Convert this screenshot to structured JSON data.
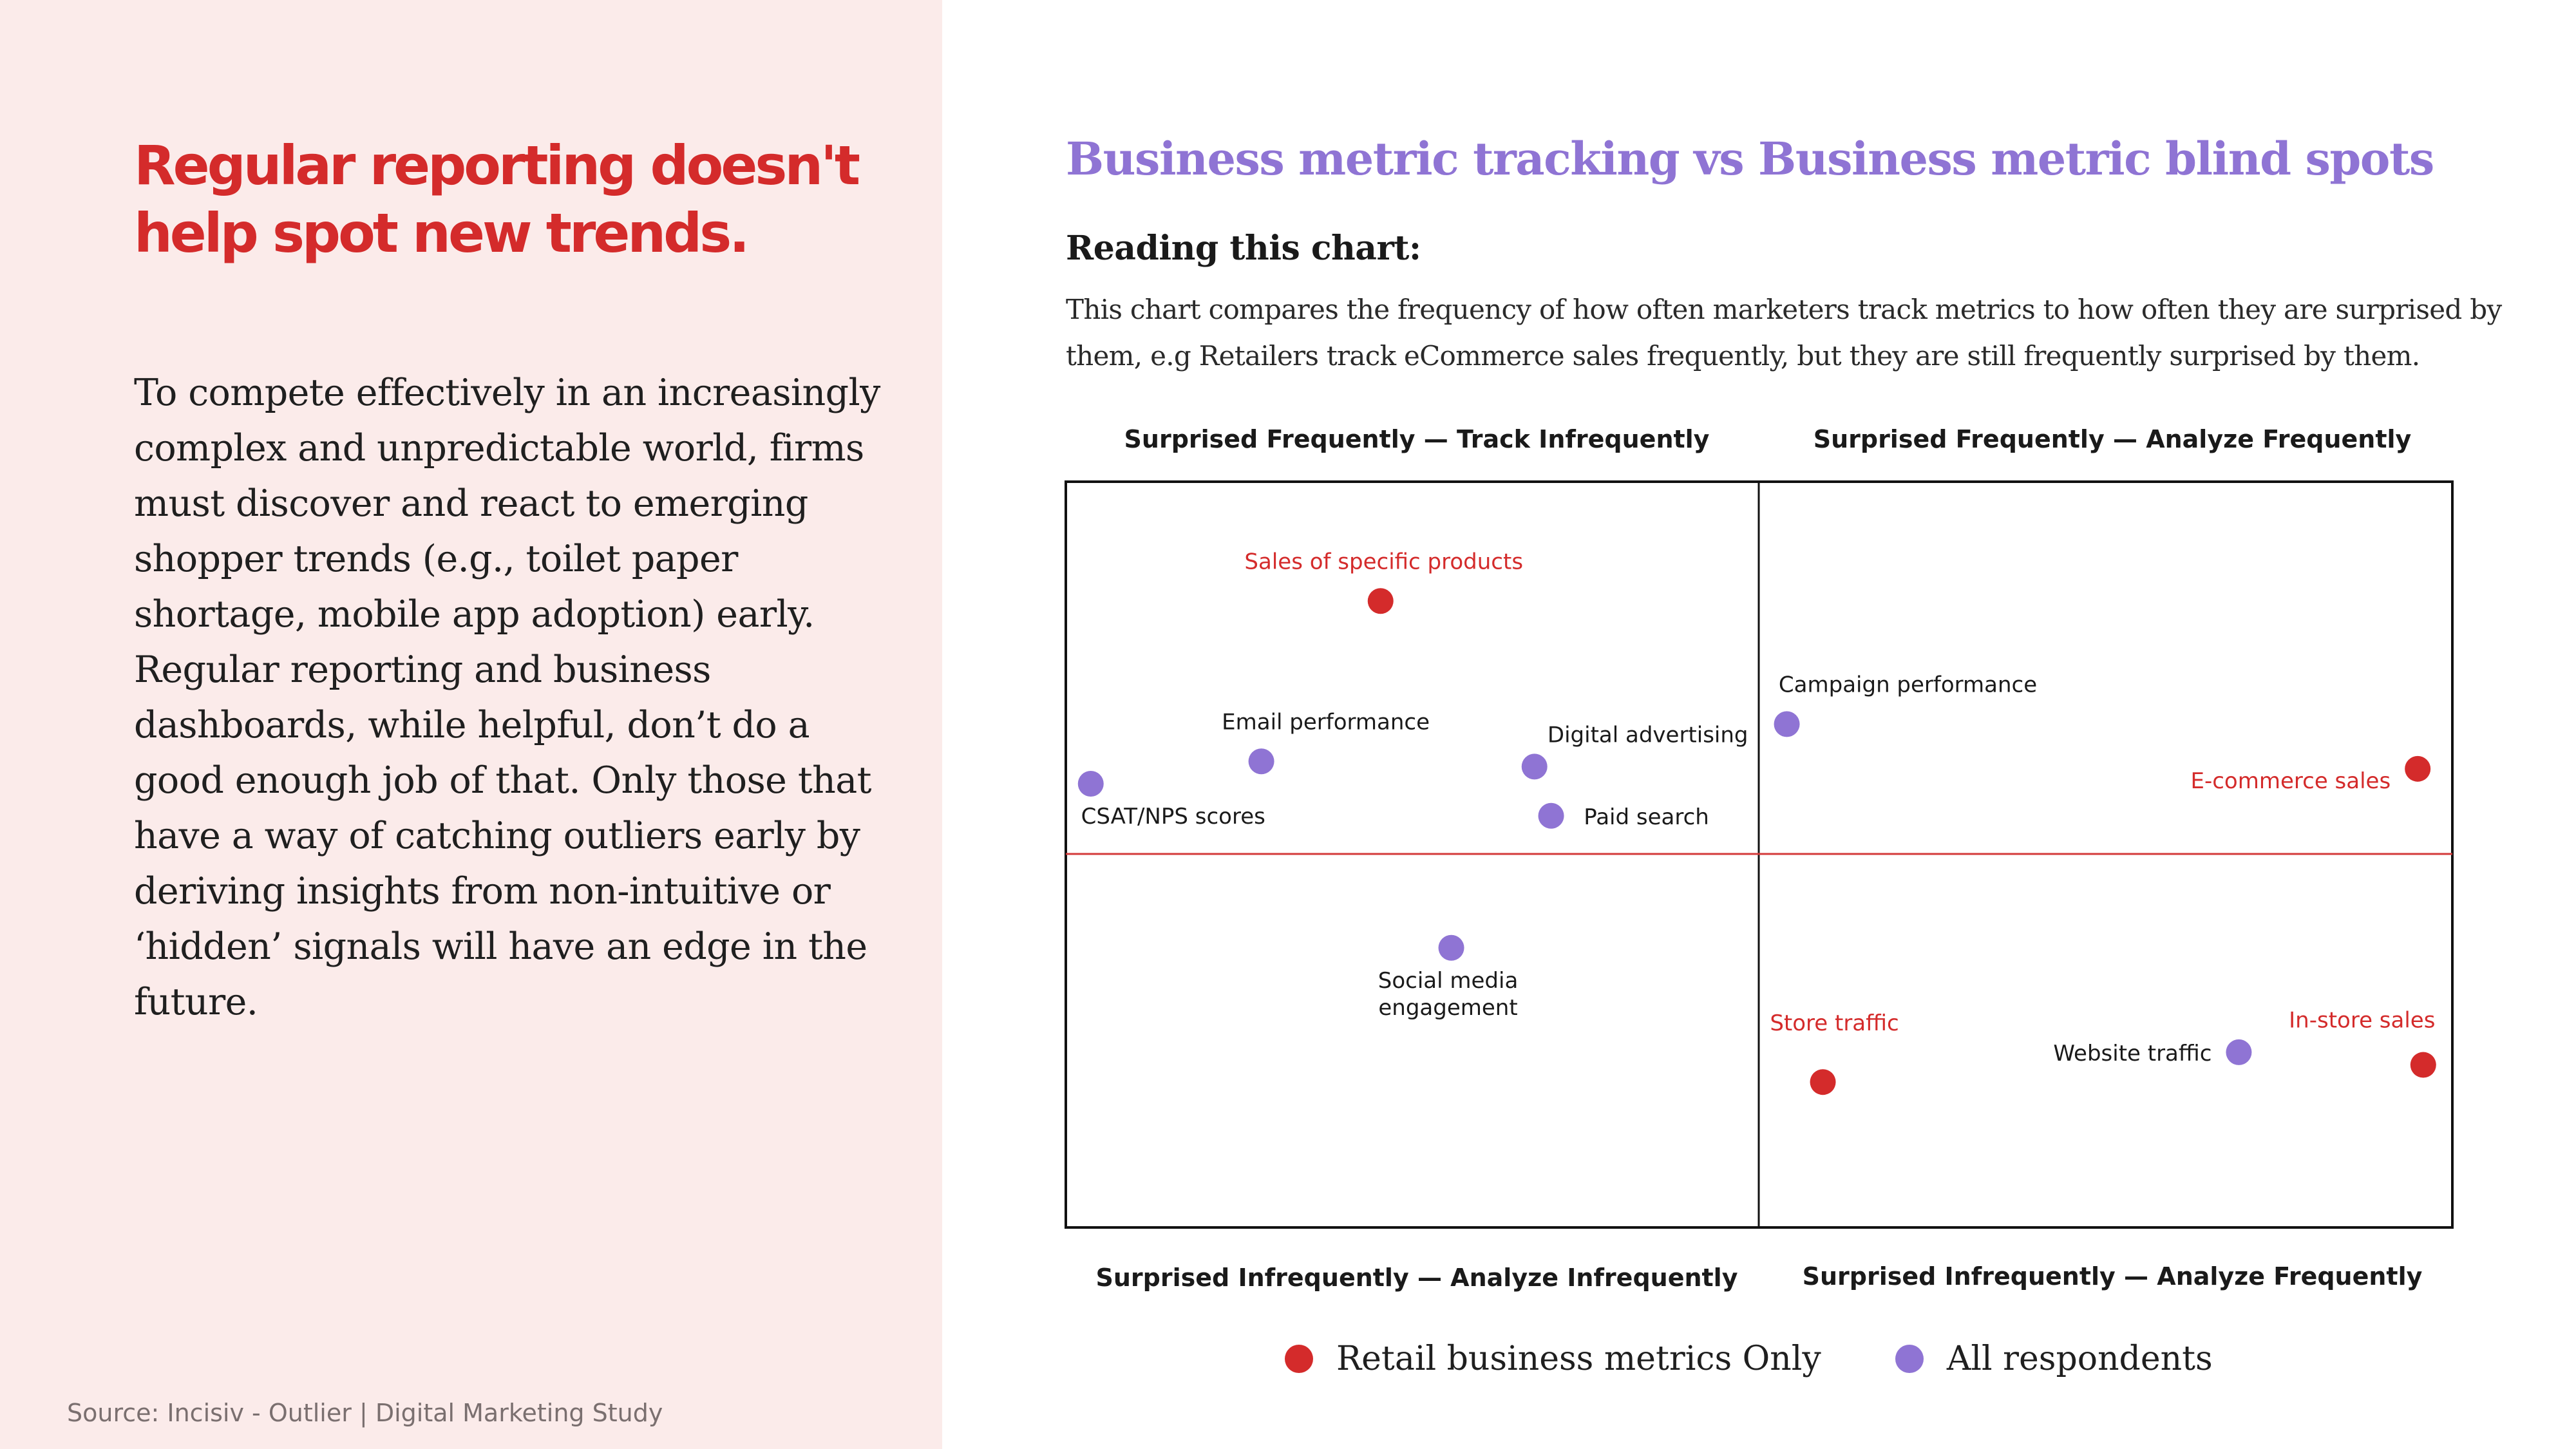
{
  "left": {
    "headline": "Regular reporting doesn't help spot new trends.",
    "body": "To compete effectively in an increasingly complex and unpredictable world, firms must discover and react to emerging shopper trends (e.g., toilet paper shortage, mobile app adoption) early. Regular reporting and business dashboards, while helpful, don’t do a good enough job of that. Only those that have a way of catching outliers early by deriving insights from non-intuitive or ‘hidden’ signals will have an edge in the future.",
    "source": "Source: Incisiv - Outlier | Digital Marketing Study"
  },
  "right": {
    "title": "Business metric tracking vs Business metric blind spots",
    "reading_heading": "Reading this chart:",
    "reading_desc": "This chart compares the frequency of how often marketers track metrics to how often they are surprised by them, e.g Retailers track eCommerce sales frequently, but they are still frequently surprised by them."
  },
  "colors": {
    "retail": "#d42b2b",
    "all": "#8f74d4",
    "divider_h": "#d43a3a",
    "frame": "#111111"
  },
  "chart_data": {
    "type": "scatter",
    "xlim": [
      0,
      100
    ],
    "ylim": [
      0,
      100
    ],
    "quadrant_labels": {
      "top_left": "Surprised Frequently — Track Infrequently",
      "top_right": "Surprised Frequently — Analyze Frequently",
      "bottom_left": "Surprised Infrequently — Analyze Infrequently",
      "bottom_right": "Surprised Infrequently — Analyze Frequently"
    },
    "series": [
      {
        "name": "Retail business metrics Only",
        "color": "#d42b2b",
        "points": [
          {
            "label": "Sales of specific products",
            "x": 22.7,
            "y": 84
          },
          {
            "label": "E-commerce sales",
            "x": 97.5,
            "y": 61.5
          },
          {
            "label": "Store traffic",
            "x": 54.6,
            "y": 19.5
          },
          {
            "label": "In-store sales",
            "x": 97.9,
            "y": 21.8
          }
        ]
      },
      {
        "name": "All respondents",
        "color": "#8f74d4",
        "points": [
          {
            "label": "Email performance",
            "x": 14.1,
            "y": 62.5
          },
          {
            "label": "Digital advertising",
            "x": 33.8,
            "y": 61.8
          },
          {
            "label": "CSAT/NPS scores",
            "x": 1.8,
            "y": 59.5
          },
          {
            "label": "Paid search",
            "x": 35.0,
            "y": 55.2
          },
          {
            "label": "Campaign performance",
            "x": 52.0,
            "y": 67.5
          },
          {
            "label": "Social media engagement",
            "x": 27.8,
            "y": 37.5
          },
          {
            "label": "Website traffic",
            "x": 84.6,
            "y": 23.5
          }
        ]
      }
    ]
  }
}
